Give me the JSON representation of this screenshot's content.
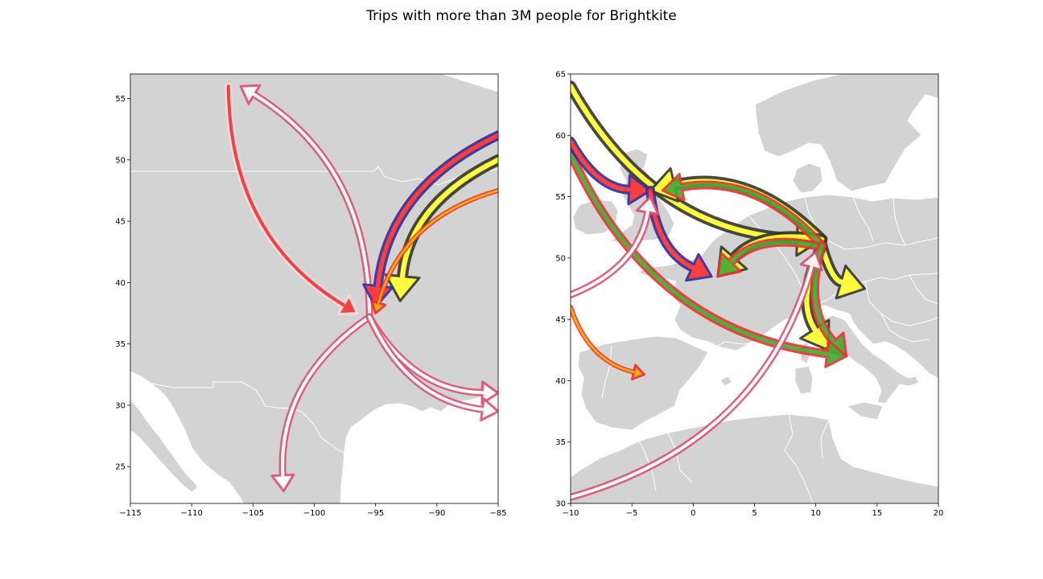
{
  "title": "Trips with more than 3M people for Brightkite",
  "colors": {
    "land": "#d3d3d3",
    "sea": "#ffffff",
    "border": "#ffffff"
  },
  "maps": [
    {
      "id": "north-america",
      "x_ticks": [
        "−115",
        "−110",
        "−105",
        "−100",
        "−95",
        "−90",
        "−85"
      ],
      "y_ticks": [
        "25",
        "30",
        "35",
        "40",
        "45",
        "50",
        "55"
      ],
      "xlim": [
        -115,
        -85
      ],
      "ylim": [
        22,
        57
      ],
      "flows": [
        {
          "style": "pink-white",
          "from": [
            -95.5,
            37.2
          ],
          "to": [
            -106,
            56
          ]
        },
        {
          "style": "red-white",
          "from": [
            -107,
            56
          ],
          "to": [
            -96.5,
            37.5
          ]
        },
        {
          "style": "pink-white",
          "from": [
            -95.5,
            37.2
          ],
          "to": [
            -102.5,
            23
          ]
        },
        {
          "style": "pink-white",
          "from": [
            -95.5,
            37.2
          ],
          "to": [
            -85,
            31
          ]
        },
        {
          "style": "pink-white",
          "from": [
            -95.5,
            37.2
          ],
          "to": [
            -85,
            29.5
          ]
        },
        {
          "style": "blue-red",
          "from": [
            -85,
            52
          ],
          "to": [
            -95,
            38
          ]
        },
        {
          "style": "black-yellow",
          "from": [
            -85,
            50
          ],
          "to": [
            -93,
            38.5
          ]
        },
        {
          "style": "red-orange",
          "from": [
            -85,
            47.5
          ],
          "to": [
            -95,
            37.5
          ]
        }
      ]
    },
    {
      "id": "europe",
      "x_ticks": [
        "−10",
        "−5",
        "0",
        "5",
        "10",
        "15",
        "20"
      ],
      "y_ticks": [
        "30",
        "35",
        "40",
        "45",
        "50",
        "55",
        "60",
        "65"
      ],
      "xlim": [
        -10,
        20
      ],
      "ylim": [
        30,
        65
      ],
      "flows": [
        {
          "style": "black-yellow",
          "from": [
            -10,
            64
          ],
          "to": [
            10.5,
            51.5
          ]
        },
        {
          "style": "black-yellow",
          "from": [
            10.5,
            51.5
          ],
          "to": [
            -3.5,
            55.5
          ]
        },
        {
          "style": "black-yellow",
          "from": [
            10.5,
            51.5
          ],
          "to": [
            2,
            48.5
          ]
        },
        {
          "style": "black-yellow",
          "from": [
            10.5,
            51
          ],
          "to": [
            14,
            47.5
          ]
        },
        {
          "style": "black-yellow",
          "from": [
            10.5,
            51
          ],
          "to": [
            11,
            42.5
          ]
        },
        {
          "style": "red-green",
          "from": [
            10.5,
            51
          ],
          "to": [
            -2.5,
            55.5
          ]
        },
        {
          "style": "red-green",
          "from": [
            10,
            51
          ],
          "to": [
            2,
            48.5
          ]
        },
        {
          "style": "red-green",
          "from": [
            10.5,
            51
          ],
          "to": [
            12.5,
            42
          ]
        },
        {
          "style": "red-green",
          "from": [
            -10,
            58.5
          ],
          "to": [
            12.5,
            42
          ]
        },
        {
          "style": "blue-red",
          "from": [
            -10,
            59.5
          ],
          "to": [
            -3.5,
            55.5
          ]
        },
        {
          "style": "blue-red",
          "from": [
            -3.5,
            55.5
          ],
          "to": [
            1.5,
            48.5
          ]
        },
        {
          "style": "pink-white",
          "from": [
            -10,
            47
          ],
          "to": [
            -3.5,
            55
          ]
        },
        {
          "style": "pink-white",
          "from": [
            -10,
            30.5
          ],
          "to": [
            10,
            50.5
          ]
        },
        {
          "style": "red-orange",
          "from": [
            -10,
            46
          ],
          "to": [
            -4,
            40.5
          ]
        }
      ]
    }
  ]
}
